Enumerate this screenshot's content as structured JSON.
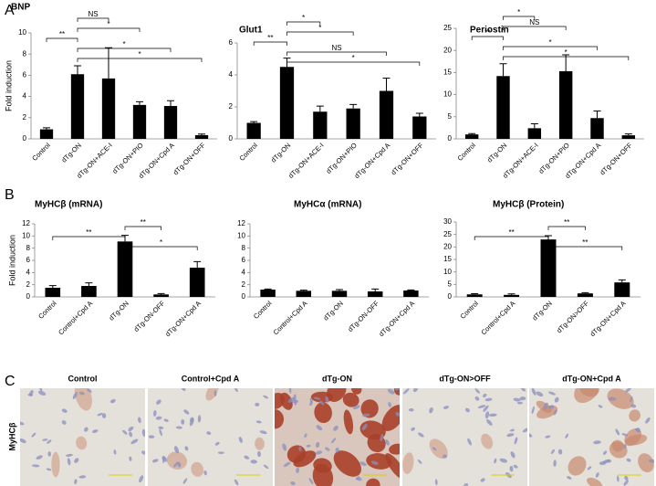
{
  "panel_labels": [
    "A",
    "B",
    "C"
  ],
  "chart_data": [
    {
      "type": "bar",
      "title": "BNP",
      "ylabel": "Fold induction",
      "color": "#000000",
      "categories": [
        "Control",
        "dTg-ON",
        "dTg-ON+ACE-I",
        "dTg-ON+PIO",
        "dTg-ON+Cpd A",
        "dTg-ON+OFF"
      ],
      "values": [
        0.9,
        6.1,
        5.7,
        3.2,
        3.1,
        0.35
      ],
      "errors": [
        0.15,
        0.8,
        2.9,
        0.3,
        0.5,
        0.1
      ],
      "ylim": [
        0,
        10
      ],
      "yticks": [
        0,
        2,
        4,
        6,
        8,
        10
      ],
      "significance": [
        {
          "label": "NS",
          "between": [
            "dTg-ON",
            "dTg-ON+ACE-I"
          ]
        },
        {
          "label": "*",
          "between": [
            "dTg-ON",
            "dTg-ON+PIO"
          ]
        },
        {
          "label": "**",
          "between": [
            "Control",
            "dTg-ON"
          ]
        },
        {
          "label": "*",
          "between": [
            "dTg-ON",
            "dTg-ON+Cpd A"
          ]
        },
        {
          "label": "*",
          "between": [
            "dTg-ON",
            "dTg-ON+OFF"
          ]
        }
      ]
    },
    {
      "type": "bar",
      "title": "Glut1",
      "color": "#000000",
      "categories": [
        "Control",
        "dTg-ON",
        "dTg-ON+ACE-I",
        "dTg-ON+PIO",
        "dTg-ON+Cpd A",
        "dTg-ON+OFF"
      ],
      "values": [
        1.0,
        4.5,
        1.7,
        1.9,
        3.0,
        1.4
      ],
      "errors": [
        0.08,
        0.55,
        0.35,
        0.25,
        0.8,
        0.2
      ],
      "ylim": [
        0,
        6
      ],
      "yticks": [
        0,
        2,
        4,
        6
      ],
      "significance": [
        {
          "label": "*",
          "between": [
            "dTg-ON",
            "dTg-ON+ACE-I"
          ]
        },
        {
          "label": "*",
          "between": [
            "dTg-ON",
            "dTg-ON+PIO"
          ]
        },
        {
          "label": "**",
          "between": [
            "Control",
            "dTg-ON"
          ]
        },
        {
          "label": "NS",
          "between": [
            "dTg-ON",
            "dTg-ON+Cpd A"
          ]
        },
        {
          "label": "*",
          "between": [
            "dTg-ON",
            "dTg-ON+OFF"
          ]
        }
      ]
    },
    {
      "type": "bar",
      "title": "Periostin",
      "color": "#000000",
      "categories": [
        "Control",
        "dTg-ON",
        "dTg-ON+ACE-I",
        "dTg-ON+PIO",
        "dTg-ON+Cpd A",
        "dTg-ON+OFF"
      ],
      "values": [
        1.0,
        14.2,
        2.4,
        15.3,
        4.7,
        0.8
      ],
      "errors": [
        0.2,
        2.8,
        1.0,
        3.7,
        1.6,
        0.3
      ],
      "ylim": [
        0,
        25
      ],
      "yticks": [
        0,
        5,
        10,
        15,
        20,
        25
      ],
      "significance": [
        {
          "label": "*",
          "between": [
            "dTg-ON",
            "dTg-ON+ACE-I"
          ]
        },
        {
          "label": "NS",
          "between": [
            "dTg-ON",
            "dTg-ON+PIO"
          ]
        },
        {
          "label": "**",
          "between": [
            "Control",
            "dTg-ON"
          ]
        },
        {
          "label": "*",
          "between": [
            "dTg-ON",
            "dTg-ON+Cpd A"
          ]
        },
        {
          "label": "*",
          "between": [
            "dTg-ON",
            "dTg-ON+OFF"
          ]
        }
      ]
    },
    {
      "type": "bar",
      "title": "MyHCβ (mRNA)",
      "ylabel": "Fold induction",
      "color": "#000000",
      "categories": [
        "Control",
        "Control+Cpd A",
        "dTg-ON",
        "dTg-ON-OFF",
        "dTg-ON+Cpd A"
      ],
      "values": [
        1.5,
        1.8,
        9.1,
        0.4,
        4.8
      ],
      "errors": [
        0.35,
        0.5,
        1.0,
        0.15,
        1.0
      ],
      "ylim": [
        0,
        12
      ],
      "yticks": [
        0,
        2,
        4,
        6,
        8,
        10,
        12
      ],
      "significance": [
        {
          "label": "**",
          "between": [
            "dTg-ON",
            "dTg-ON-OFF"
          ]
        },
        {
          "label": "**",
          "between": [
            "Control",
            "dTg-ON"
          ]
        },
        {
          "label": "*",
          "between": [
            "dTg-ON",
            "dTg-ON+Cpd A"
          ]
        }
      ]
    },
    {
      "type": "bar",
      "title": "MyHCα (mRNA)",
      "color": "#000000",
      "categories": [
        "Control",
        "Control+Cpd A",
        "dTg-ON",
        "dTg-ON-OFF",
        "dTg-ON+Cpd A"
      ],
      "values": [
        1.2,
        1.0,
        1.0,
        0.9,
        1.05
      ],
      "errors": [
        0.1,
        0.1,
        0.2,
        0.4,
        0.1
      ],
      "ylim": [
        0,
        12
      ],
      "yticks": [
        0,
        2,
        4,
        6,
        8,
        10,
        12
      ]
    },
    {
      "type": "bar",
      "title": "MyHCβ (Protein)",
      "color": "#000000",
      "categories": [
        "Control",
        "Control+Cpd A",
        "dTg-ON",
        "dTg-ON>OFF",
        "dTg-ON+Cpd A"
      ],
      "values": [
        1.0,
        0.8,
        23.0,
        1.4,
        5.8
      ],
      "errors": [
        0.3,
        0.4,
        1.5,
        0.3,
        1.0
      ],
      "ylim": [
        0,
        30
      ],
      "yticks": [
        0,
        5,
        10,
        15,
        20,
        25,
        30
      ],
      "significance": [
        {
          "label": "**",
          "between": [
            "dTg-ON",
            "dTg-ON>OFF"
          ]
        },
        {
          "label": "**",
          "between": [
            "Control",
            "dTg-ON"
          ]
        },
        {
          "label": "**",
          "between": [
            "dTg-ON",
            "dTg-ON+Cpd A"
          ]
        }
      ]
    }
  ],
  "images": {
    "row_label": "MyHCβ",
    "titles": [
      "Control",
      "Control+Cpd A",
      "dTg-ON",
      "dTg-ON>OFF",
      "dTg-ON+Cpd A"
    ]
  }
}
